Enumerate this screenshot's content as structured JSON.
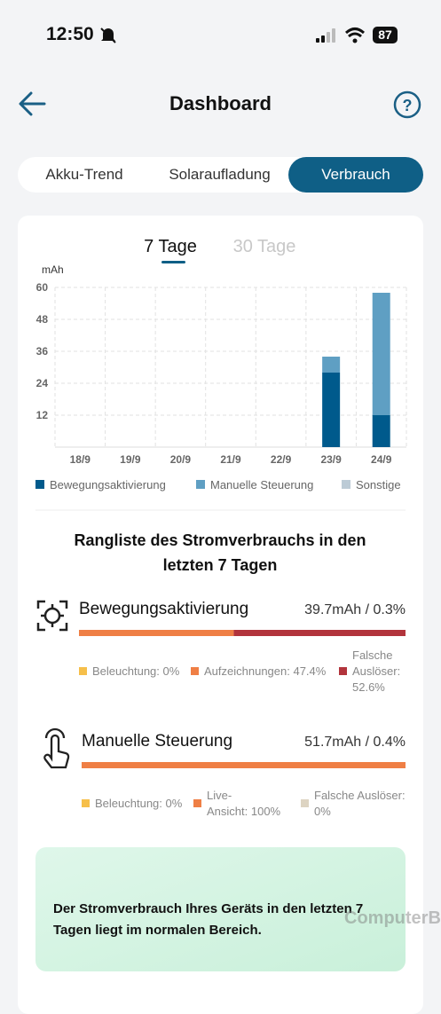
{
  "status": {
    "time": "12:50",
    "battery": "87"
  },
  "header": {
    "title": "Dashboard"
  },
  "tabs": [
    "Akku-Trend",
    "Solaraufladung",
    "Verbrauch"
  ],
  "periods": [
    "7 Tage",
    "30 Tage"
  ],
  "chart_data": {
    "type": "bar",
    "stacked": true,
    "y_label": "mAh",
    "categories": [
      "18/9",
      "19/9",
      "20/9",
      "21/9",
      "22/9",
      "23/9",
      "24/9"
    ],
    "series": [
      {
        "name": "Bewegungsaktivierung",
        "color": "#005a8c",
        "values": [
          0,
          0,
          0,
          0,
          0,
          28,
          12
        ]
      },
      {
        "name": "Manuelle Steuerung",
        "color": "#5f9fc3",
        "values": [
          0,
          0,
          0,
          0,
          0,
          6,
          46
        ]
      },
      {
        "name": "Sonstige",
        "color": "#bccbd6",
        "values": [
          0,
          0,
          0,
          0,
          0,
          0,
          0
        ]
      }
    ],
    "ylim": [
      0,
      60
    ],
    "yticks": [
      12,
      24,
      36,
      48,
      60
    ],
    "grid": true
  },
  "ranking": {
    "title": "Rangliste des Stromverbrauchs in den letzten 7 Tagen",
    "items": [
      {
        "name": "Bewegungsaktivierung",
        "value": "39.7mAh / 0.3%",
        "breakdown": [
          {
            "label": "Beleuchtung: 0%",
            "share": 0,
            "color": "#f6bf4a"
          },
          {
            "label": "Aufzeichnungen: 47.4%",
            "share": 47.4,
            "color": "#ef7f45"
          },
          {
            "label": "Falsche Auslöser: 52.6%",
            "share": 52.6,
            "color": "#b2343c"
          }
        ]
      },
      {
        "name": "Manuelle Steuerung",
        "value": "51.7mAh / 0.4%",
        "breakdown": [
          {
            "label": "Beleuchtung: 0%",
            "share": 0,
            "color": "#f6bf4a"
          },
          {
            "label": "Live-Ansicht: 100%",
            "share": 100,
            "color": "#ef7f45"
          },
          {
            "label": "Falsche Auslöser: 0%",
            "share": 0,
            "color": "#ddd4c2"
          }
        ]
      }
    ]
  },
  "banner": {
    "text": "Der Stromverbrauch Ihres Geräts in den letzten 7 Tagen liegt im normalen Bereich."
  },
  "watermark": "ComputerBase"
}
